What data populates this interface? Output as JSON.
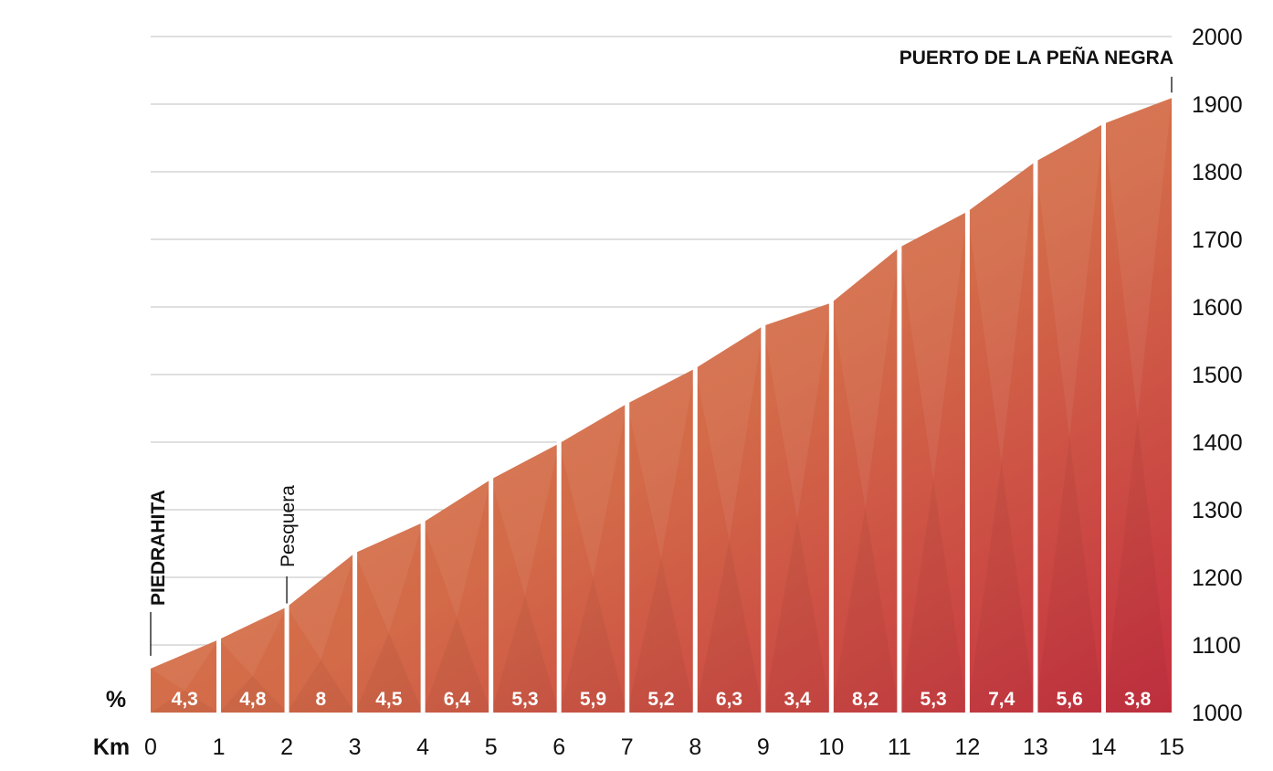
{
  "chart_data": {
    "type": "area",
    "title": "",
    "xlabel": "Km",
    "ylabel": "",
    "xlim": [
      0,
      15
    ],
    "ylim": [
      1000,
      2000
    ],
    "x_ticks": [
      "0",
      "1",
      "2",
      "3",
      "4",
      "5",
      "6",
      "7",
      "8",
      "9",
      "10",
      "11",
      "12",
      "13",
      "14",
      "15"
    ],
    "y_ticks": [
      "1000",
      "1100",
      "1200",
      "1300",
      "1400",
      "1500",
      "1600",
      "1700",
      "1800",
      "1900",
      "2000"
    ],
    "y_axis_position": "right",
    "grid": true,
    "percent_label": "%",
    "km_label": "Km",
    "segments": [
      {
        "from_km": 0,
        "to_km": 1,
        "start_alt": 1065,
        "end_alt": 1108,
        "gradient": "4,3"
      },
      {
        "from_km": 1,
        "to_km": 2,
        "start_alt": 1108,
        "end_alt": 1156,
        "gradient": "4,8"
      },
      {
        "from_km": 2,
        "to_km": 3,
        "start_alt": 1156,
        "end_alt": 1236,
        "gradient": "8"
      },
      {
        "from_km": 3,
        "to_km": 4,
        "start_alt": 1236,
        "end_alt": 1281,
        "gradient": "4,5"
      },
      {
        "from_km": 4,
        "to_km": 5,
        "start_alt": 1281,
        "end_alt": 1345,
        "gradient": "6,4"
      },
      {
        "from_km": 5,
        "to_km": 6,
        "start_alt": 1345,
        "end_alt": 1398,
        "gradient": "5,3"
      },
      {
        "from_km": 6,
        "to_km": 7,
        "start_alt": 1398,
        "end_alt": 1457,
        "gradient": "5,9"
      },
      {
        "from_km": 7,
        "to_km": 8,
        "start_alt": 1457,
        "end_alt": 1509,
        "gradient": "5,2"
      },
      {
        "from_km": 8,
        "to_km": 9,
        "start_alt": 1509,
        "end_alt": 1572,
        "gradient": "6,3"
      },
      {
        "from_km": 9,
        "to_km": 10,
        "start_alt": 1572,
        "end_alt": 1606,
        "gradient": "3,4"
      },
      {
        "from_km": 10,
        "to_km": 11,
        "start_alt": 1606,
        "end_alt": 1688,
        "gradient": "8,2"
      },
      {
        "from_km": 11,
        "to_km": 12,
        "start_alt": 1688,
        "end_alt": 1741,
        "gradient": "5,3"
      },
      {
        "from_km": 12,
        "to_km": 13,
        "start_alt": 1741,
        "end_alt": 1815,
        "gradient": "7,4"
      },
      {
        "from_km": 13,
        "to_km": 14,
        "start_alt": 1815,
        "end_alt": 1871,
        "gradient": "5,6"
      },
      {
        "from_km": 14,
        "to_km": 15,
        "start_alt": 1871,
        "end_alt": 1909,
        "gradient": "3,8"
      }
    ],
    "annotations": [
      {
        "text": "PIEDRAHITA",
        "km": 0,
        "style": "bold-vertical"
      },
      {
        "text": "Pesquera",
        "km": 2,
        "style": "light-vertical"
      },
      {
        "text": "PUERTO DE LA PEÑA NEGRA",
        "km": 15,
        "style": "bold-horizontal"
      }
    ],
    "colors": {
      "low": "#d98750",
      "high": "#c53040",
      "grid": "#cccccc"
    }
  }
}
